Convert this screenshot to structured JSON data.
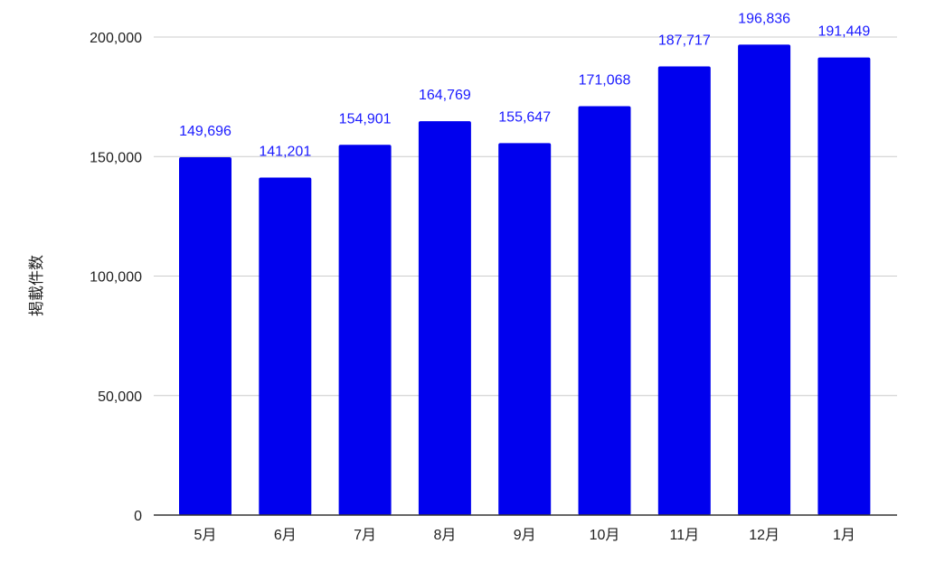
{
  "chart_data": {
    "type": "bar",
    "title": "",
    "xlabel": "",
    "ylabel": "掲載件数",
    "categories": [
      "5月",
      "6月",
      "7月",
      "8月",
      "9月",
      "10月",
      "11月",
      "12月",
      "1月"
    ],
    "values": [
      149696,
      141201,
      154901,
      164769,
      155647,
      171068,
      187717,
      196836,
      191449
    ],
    "data_labels": [
      "149,696",
      "141,201",
      "154,901",
      "164,769",
      "155,647",
      "171,068",
      "187,717",
      "196,836",
      "191,449"
    ],
    "ylim": [
      0,
      200000
    ],
    "yticks": [
      0,
      50000,
      100000,
      150000,
      200000
    ],
    "ytick_labels": [
      "0",
      "50,000",
      "100,000",
      "150,000",
      "200,000"
    ],
    "grid": true,
    "legend": "none",
    "colors": {
      "bar": "#0000ee",
      "data_label": "#1a1aff",
      "grid": "#cccccc",
      "axis": "#333333"
    }
  }
}
